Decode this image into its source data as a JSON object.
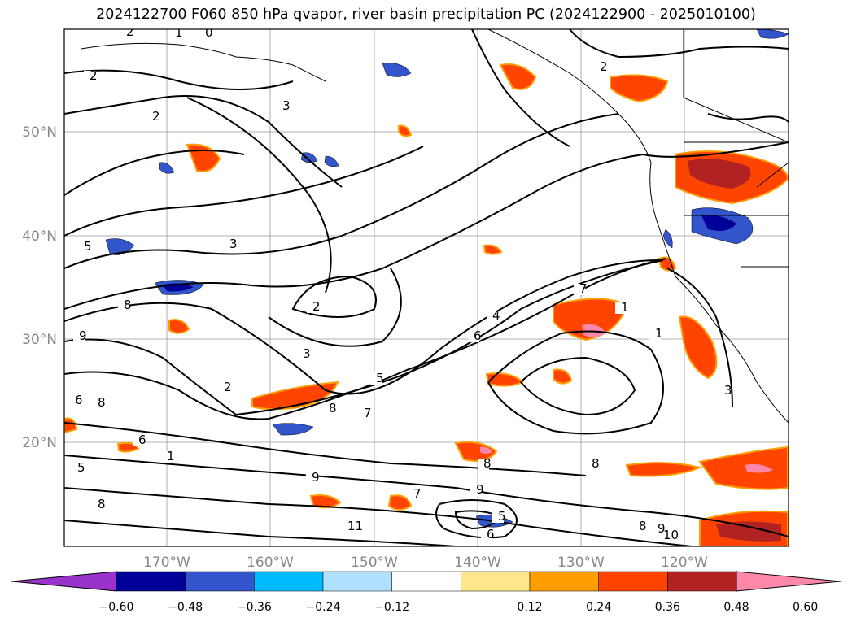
{
  "title": "2024122700 F060 850 hPa qvapor, river basin precipitation PC (2024122900 - 2025010100)",
  "map": {
    "lat_labels": [
      "50°N",
      "40°N",
      "30°N",
      "20°N"
    ],
    "lon_labels": [
      "170°W",
      "160°W",
      "150°W",
      "140°W",
      "130°W",
      "120°W"
    ],
    "grid_lines": true,
    "contour_labels": [
      "2",
      "1",
      "0",
      "2",
      "3",
      "2",
      "3",
      "5",
      "3",
      "2",
      "3",
      "8",
      "9",
      "2",
      "7",
      "4",
      "6",
      "5",
      "8",
      "7",
      "6",
      "1",
      "6",
      "8",
      "5",
      "9",
      "8",
      "9",
      "8",
      "8",
      "10",
      "11",
      "7",
      "5",
      "6",
      "9",
      "8",
      "3",
      "1",
      "1",
      "2"
    ]
  },
  "colorbar": {
    "tick_labels": [
      "−0.60",
      "−0.48",
      "−0.36",
      "−0.24",
      "−0.12",
      "0.12",
      "0.24",
      "0.36",
      "0.48",
      "0.60"
    ],
    "colors": [
      "#9933cc",
      "#000099",
      "#3355cc",
      "#00bbff",
      "#b0e0ff",
      "#ffffff",
      "#ffe68a",
      "#ff9e00",
      "#ff4400",
      "#b22222",
      "#ff88aa"
    ]
  }
}
